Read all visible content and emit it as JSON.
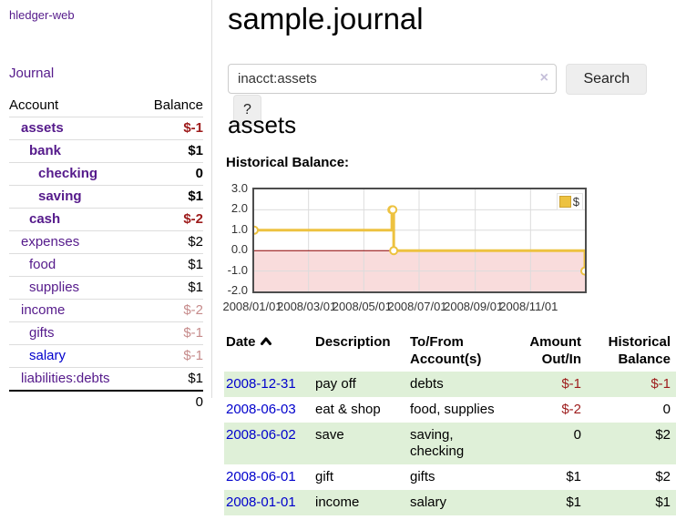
{
  "app": {
    "brand": "hledger-web"
  },
  "sidebar": {
    "journal_link": "Journal",
    "columns": {
      "account": "Account",
      "balance": "Balance"
    },
    "accounts": [
      {
        "name": "assets",
        "balance": "$-1",
        "depth": 1
      },
      {
        "name": "bank",
        "balance": "$1",
        "depth": 2
      },
      {
        "name": "checking",
        "balance": "0",
        "depth": 3
      },
      {
        "name": "saving",
        "balance": "$1",
        "depth": 3
      },
      {
        "name": "cash",
        "balance": "$-2",
        "depth": 2
      },
      {
        "name": "expenses",
        "balance": "$2",
        "depth": 1
      },
      {
        "name": "food",
        "balance": "$1",
        "depth": 2
      },
      {
        "name": "supplies",
        "balance": "$1",
        "depth": 2
      },
      {
        "name": "income",
        "balance": "$-2",
        "depth": 1
      },
      {
        "name": "gifts",
        "balance": "$-1",
        "depth": 2
      },
      {
        "name": "salary",
        "balance": "$-1",
        "depth": 2
      },
      {
        "name": "liabilities:debts",
        "balance": "$1",
        "depth": 1
      }
    ],
    "total": "0"
  },
  "header": {
    "title": "sample.journal"
  },
  "search": {
    "value": "inacct:assets",
    "clear_icon": "×",
    "button_label": "Search",
    "help_label": "?"
  },
  "register": {
    "heading": "assets",
    "chart_label": "Historical Balance:"
  },
  "chart_data": {
    "type": "line",
    "title": "Historical Balance",
    "steps": true,
    "x": [
      "2008-01-01",
      "2008-06-01",
      "2008-06-02",
      "2008-06-03",
      "2008-12-31"
    ],
    "values": [
      1,
      2,
      2,
      0,
      -1
    ],
    "x_ticks": [
      "2008/01/01",
      "2008/03/01",
      "2008/05/01",
      "2008/07/01",
      "2008/09/01",
      "2008/11/01"
    ],
    "y_ticks": [
      "3.0",
      "2.0",
      "1.0",
      "0.0",
      "-1.0",
      "-2.0"
    ],
    "ylim": [
      -2,
      3
    ],
    "xlabel": "",
    "ylabel": "",
    "grid": true,
    "legend": {
      "position": "top-right",
      "entries": [
        {
          "label": "$",
          "color": "#edc240"
        }
      ]
    },
    "series_color": "#edc240",
    "negative_fill": "#f9dcdc",
    "zero_line_color": "#8b0000",
    "grid_color": "#dcdcdc"
  },
  "table": {
    "headers": {
      "date": "Date",
      "description": "Description",
      "tofrom_1": "To/From",
      "tofrom_2": "Account(s)",
      "amount_1": "Amount",
      "amount_2": "Out/In",
      "historical_1": "Historical",
      "historical_2": "Balance"
    },
    "rows": [
      {
        "date": "2008-12-31",
        "description": "pay off",
        "accounts": "debts",
        "amount": "$-1",
        "balance": "$-1"
      },
      {
        "date": "2008-06-03",
        "description": "eat & shop",
        "accounts": "food, supplies",
        "amount": "$-2",
        "balance": "0"
      },
      {
        "date": "2008-06-02",
        "description": "save",
        "accounts": "saving,\nchecking",
        "amount": "0",
        "balance": "$2"
      },
      {
        "date": "2008-06-01",
        "description": "gift",
        "accounts": "gifts",
        "amount": "$1",
        "balance": "$2"
      },
      {
        "date": "2008-01-01",
        "description": "income",
        "accounts": "salary",
        "amount": "$1",
        "balance": "$1"
      }
    ]
  },
  "colors": {
    "accent_purple": "#551a8b",
    "link_blue": "#0000cc",
    "negative_strong": "#9d1b1b",
    "negative_soft": "#c68b8b",
    "row_green": "#dff0d8",
    "series_gold": "#edc240"
  }
}
